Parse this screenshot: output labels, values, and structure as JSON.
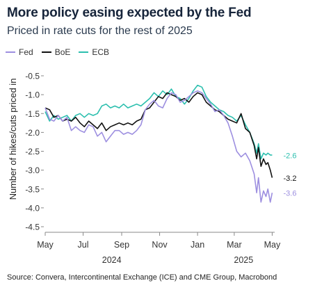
{
  "header": {
    "title": "More policy easing expected by the Fed",
    "subtitle": "Priced in rate cuts for the rest of 2025"
  },
  "footer": {
    "source": "Source: Convera, Intercontinental Exchange (ICE) and CME Group, Macrobond"
  },
  "colors": {
    "Fed": "#9d8fe0",
    "BoE": "#111111",
    "ECB": "#2bbfae",
    "axis": "#888888",
    "tick_text": "#333333"
  },
  "chart_data": {
    "type": "line",
    "title": "More policy easing expected by the Fed",
    "subtitle": "Priced in rate cuts for the rest of 2025",
    "ylabel": "Number of hikes/cuts priced in",
    "xlabel": "",
    "ylim": [
      -4.5,
      -0.5
    ],
    "yticks": [
      -0.5,
      -1.0,
      -1.5,
      -2.0,
      -2.5,
      -3.0,
      -3.5,
      -4.0,
      -4.5
    ],
    "ytick_labels": [
      "-0.5",
      "-1.0",
      "-1.5",
      "-2.0",
      "-2.5",
      "-3.0",
      "-3.5",
      "-4.0",
      "-4.5"
    ],
    "xlim": [
      "2024-05-01",
      "2025-05-05"
    ],
    "x_month_ticks": [
      {
        "date": "2024-05-01",
        "label": "May"
      },
      {
        "date": "2024-07-01",
        "label": "Jul"
      },
      {
        "date": "2024-09-01",
        "label": "Sep"
      },
      {
        "date": "2024-11-01",
        "label": "Nov"
      },
      {
        "date": "2025-01-01",
        "label": "Jan"
      },
      {
        "date": "2025-03-01",
        "label": "Mar"
      },
      {
        "date": "2025-05-01",
        "label": "May"
      }
    ],
    "x_year_labels": [
      {
        "date": "2024-08-16",
        "label": "2024"
      },
      {
        "date": "2025-03-16",
        "label": "2025"
      }
    ],
    "grid": false,
    "legend": "top-left",
    "series": [
      {
        "name": "Fed",
        "end_label": "-3.6",
        "end_value": -3.6,
        "points": [
          [
            "2024-05-01",
            -1.35
          ],
          [
            "2024-05-08",
            -1.65
          ],
          [
            "2024-05-15",
            -1.7
          ],
          [
            "2024-05-22",
            -1.55
          ],
          [
            "2024-05-29",
            -1.7
          ],
          [
            "2024-06-05",
            -1.6
          ],
          [
            "2024-06-12",
            -1.95
          ],
          [
            "2024-06-19",
            -1.85
          ],
          [
            "2024-06-26",
            -1.95
          ],
          [
            "2024-07-03",
            -2.0
          ],
          [
            "2024-07-10",
            -1.8
          ],
          [
            "2024-07-17",
            -1.85
          ],
          [
            "2024-07-24",
            -2.1
          ],
          [
            "2024-07-31",
            -2.0
          ],
          [
            "2024-08-07",
            -2.25
          ],
          [
            "2024-08-14",
            -2.1
          ],
          [
            "2024-08-21",
            -1.95
          ],
          [
            "2024-08-28",
            -1.95
          ],
          [
            "2024-09-04",
            -2.05
          ],
          [
            "2024-09-11",
            -2.0
          ],
          [
            "2024-09-18",
            -2.05
          ],
          [
            "2024-09-25",
            -1.95
          ],
          [
            "2024-10-02",
            -1.8
          ],
          [
            "2024-10-09",
            -1.4
          ],
          [
            "2024-10-16",
            -1.25
          ],
          [
            "2024-10-23",
            -1.15
          ],
          [
            "2024-10-30",
            -1.3
          ],
          [
            "2024-11-06",
            -1.35
          ],
          [
            "2024-11-13",
            -1.1
          ],
          [
            "2024-11-20",
            -0.95
          ],
          [
            "2024-11-27",
            -1.0
          ],
          [
            "2024-12-04",
            -1.2
          ],
          [
            "2024-12-11",
            -1.15
          ],
          [
            "2024-12-18",
            -1.05
          ],
          [
            "2024-12-25",
            -0.95
          ],
          [
            "2025-01-01",
            -0.9
          ],
          [
            "2025-01-08",
            -0.95
          ],
          [
            "2025-01-15",
            -1.1
          ],
          [
            "2025-01-22",
            -1.25
          ],
          [
            "2025-01-29",
            -1.45
          ],
          [
            "2025-02-05",
            -1.4
          ],
          [
            "2025-02-12",
            -1.55
          ],
          [
            "2025-02-19",
            -1.75
          ],
          [
            "2025-02-26",
            -2.1
          ],
          [
            "2025-03-05",
            -2.5
          ],
          [
            "2025-03-12",
            -2.65
          ],
          [
            "2025-03-19",
            -2.55
          ],
          [
            "2025-03-26",
            -2.75
          ],
          [
            "2025-04-02",
            -3.1
          ],
          [
            "2025-04-06",
            -3.6
          ],
          [
            "2025-04-09",
            -3.2
          ],
          [
            "2025-04-13",
            -3.85
          ],
          [
            "2025-04-17",
            -3.55
          ],
          [
            "2025-04-21",
            -3.7
          ],
          [
            "2025-04-24",
            -3.5
          ],
          [
            "2025-04-28",
            -3.85
          ],
          [
            "2025-05-01",
            -3.6
          ]
        ]
      },
      {
        "name": "BoE",
        "end_label": "-3.2",
        "end_value": -3.2,
        "points": [
          [
            "2024-05-01",
            -1.35
          ],
          [
            "2024-05-08",
            -1.4
          ],
          [
            "2024-05-15",
            -1.6
          ],
          [
            "2024-05-22",
            -1.55
          ],
          [
            "2024-05-29",
            -1.7
          ],
          [
            "2024-06-05",
            -1.65
          ],
          [
            "2024-06-12",
            -1.7
          ],
          [
            "2024-06-19",
            -1.6
          ],
          [
            "2024-06-26",
            -1.75
          ],
          [
            "2024-07-03",
            -1.85
          ],
          [
            "2024-07-10",
            -1.7
          ],
          [
            "2024-07-17",
            -1.8
          ],
          [
            "2024-07-24",
            -1.9
          ],
          [
            "2024-07-31",
            -1.75
          ],
          [
            "2024-08-07",
            -1.95
          ],
          [
            "2024-08-14",
            -1.85
          ],
          [
            "2024-08-21",
            -1.8
          ],
          [
            "2024-08-28",
            -1.75
          ],
          [
            "2024-09-04",
            -1.8
          ],
          [
            "2024-09-11",
            -1.75
          ],
          [
            "2024-09-18",
            -1.8
          ],
          [
            "2024-09-25",
            -1.7
          ],
          [
            "2024-10-02",
            -1.65
          ],
          [
            "2024-10-09",
            -1.4
          ],
          [
            "2024-10-16",
            -1.35
          ],
          [
            "2024-10-23",
            -1.2
          ],
          [
            "2024-10-30",
            -1.05
          ],
          [
            "2024-11-06",
            -1.1
          ],
          [
            "2024-11-13",
            -0.95
          ],
          [
            "2024-11-20",
            -1.0
          ],
          [
            "2024-11-27",
            -1.05
          ],
          [
            "2024-12-04",
            -1.15
          ],
          [
            "2024-12-11",
            -1.1
          ],
          [
            "2024-12-18",
            -1.2
          ],
          [
            "2024-12-25",
            -1.05
          ],
          [
            "2025-01-01",
            -0.95
          ],
          [
            "2025-01-08",
            -1.0
          ],
          [
            "2025-01-15",
            -1.2
          ],
          [
            "2025-01-22",
            -1.3
          ],
          [
            "2025-01-29",
            -1.4
          ],
          [
            "2025-02-05",
            -1.45
          ],
          [
            "2025-02-12",
            -1.55
          ],
          [
            "2025-02-19",
            -1.65
          ],
          [
            "2025-02-26",
            -1.7
          ],
          [
            "2025-03-05",
            -1.75
          ],
          [
            "2025-03-12",
            -1.5
          ],
          [
            "2025-03-19",
            -1.9
          ],
          [
            "2025-03-26",
            -2.0
          ],
          [
            "2025-04-02",
            -2.35
          ],
          [
            "2025-04-06",
            -2.7
          ],
          [
            "2025-04-09",
            -2.4
          ],
          [
            "2025-04-13",
            -2.9
          ],
          [
            "2025-04-17",
            -2.7
          ],
          [
            "2025-04-21",
            -2.85
          ],
          [
            "2025-04-24",
            -2.8
          ],
          [
            "2025-04-28",
            -3.0
          ],
          [
            "2025-05-01",
            -3.2
          ]
        ]
      },
      {
        "name": "ECB",
        "end_label": "-2.6",
        "end_value": -2.6,
        "points": [
          [
            "2024-05-01",
            -1.45
          ],
          [
            "2024-05-08",
            -1.7
          ],
          [
            "2024-05-15",
            -1.55
          ],
          [
            "2024-05-22",
            -1.65
          ],
          [
            "2024-05-29",
            -1.6
          ],
          [
            "2024-06-05",
            -1.55
          ],
          [
            "2024-06-12",
            -1.7
          ],
          [
            "2024-06-19",
            -1.55
          ],
          [
            "2024-06-26",
            -1.5
          ],
          [
            "2024-07-03",
            -1.6
          ],
          [
            "2024-07-10",
            -1.5
          ],
          [
            "2024-07-17",
            -1.55
          ],
          [
            "2024-07-24",
            -1.5
          ],
          [
            "2024-07-31",
            -1.3
          ],
          [
            "2024-08-07",
            -1.25
          ],
          [
            "2024-08-14",
            -1.35
          ],
          [
            "2024-08-21",
            -1.3
          ],
          [
            "2024-08-28",
            -1.35
          ],
          [
            "2024-09-04",
            -1.25
          ],
          [
            "2024-09-11",
            -1.35
          ],
          [
            "2024-09-18",
            -1.3
          ],
          [
            "2024-09-25",
            -1.25
          ],
          [
            "2024-10-02",
            -1.3
          ],
          [
            "2024-10-09",
            -1.2
          ],
          [
            "2024-10-16",
            -1.1
          ],
          [
            "2024-10-23",
            -0.95
          ],
          [
            "2024-10-30",
            -1.05
          ],
          [
            "2024-11-06",
            -0.9
          ],
          [
            "2024-11-13",
            -1.0
          ],
          [
            "2024-11-20",
            -0.85
          ],
          [
            "2024-11-27",
            -1.05
          ],
          [
            "2024-12-04",
            -1.1
          ],
          [
            "2024-12-11",
            -1.25
          ],
          [
            "2024-12-18",
            -1.1
          ],
          [
            "2024-12-25",
            -0.9
          ],
          [
            "2025-01-01",
            -0.75
          ],
          [
            "2025-01-08",
            -0.8
          ],
          [
            "2025-01-15",
            -1.05
          ],
          [
            "2025-01-22",
            -1.2
          ],
          [
            "2025-01-29",
            -1.3
          ],
          [
            "2025-02-05",
            -1.4
          ],
          [
            "2025-02-12",
            -1.45
          ],
          [
            "2025-02-19",
            -1.55
          ],
          [
            "2025-02-26",
            -1.6
          ],
          [
            "2025-03-05",
            -1.7
          ],
          [
            "2025-03-12",
            -1.55
          ],
          [
            "2025-03-19",
            -1.8
          ],
          [
            "2025-03-26",
            -2.0
          ],
          [
            "2025-04-02",
            -2.3
          ],
          [
            "2025-04-06",
            -2.55
          ],
          [
            "2025-04-09",
            -2.3
          ],
          [
            "2025-04-13",
            -2.7
          ],
          [
            "2025-04-17",
            -2.55
          ],
          [
            "2025-04-21",
            -2.6
          ],
          [
            "2025-04-24",
            -2.55
          ],
          [
            "2025-04-28",
            -2.6
          ],
          [
            "2025-05-01",
            -2.6
          ]
        ]
      }
    ]
  }
}
